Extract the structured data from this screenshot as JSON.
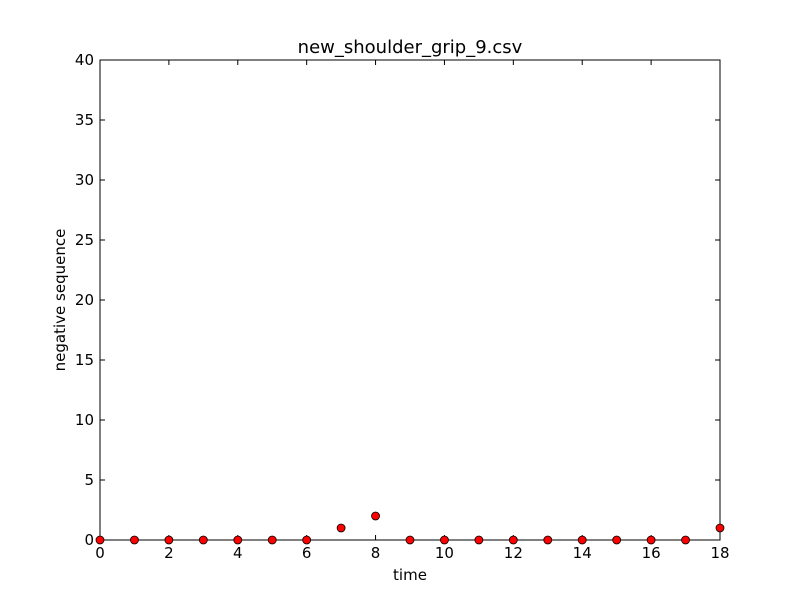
{
  "chart_data": {
    "type": "scatter",
    "title": "new_shoulder_grip_9.csv",
    "xlabel": "time",
    "ylabel": "negative sequence",
    "xlim": [
      0,
      18
    ],
    "ylim": [
      0,
      40
    ],
    "xticks": [
      0,
      2,
      4,
      6,
      8,
      10,
      12,
      14,
      16,
      18
    ],
    "yticks": [
      0,
      5,
      10,
      15,
      20,
      25,
      30,
      35,
      40
    ],
    "grid": false,
    "legend": "none",
    "series": [
      {
        "color": "#ff0000",
        "edge_color": "#000000",
        "marker": "circle",
        "x": [
          0,
          1,
          2,
          3,
          4,
          5,
          6,
          7,
          8,
          9,
          10,
          11,
          12,
          13,
          14,
          15,
          16,
          17,
          18
        ],
        "y": [
          0,
          0,
          0,
          0,
          0,
          0,
          0,
          1,
          2,
          0,
          0,
          0,
          0,
          0,
          0,
          0,
          0,
          0,
          1
        ]
      }
    ]
  }
}
